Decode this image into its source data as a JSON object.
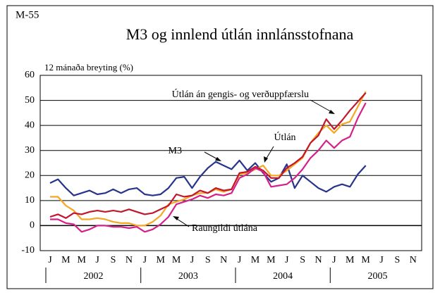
{
  "chart_data": {
    "type": "line",
    "figure_id": "M-55",
    "title": "M3 og innlend útlán innlánsstofnana",
    "y_label": "12 mánaða breyting (%)",
    "categories": [
      "J",
      null,
      "M",
      null,
      "M",
      null,
      "J",
      null,
      "S",
      null,
      "N",
      null,
      "J",
      null,
      "M",
      null,
      "M",
      null,
      "J",
      null,
      "S",
      null,
      "N",
      null,
      "J",
      null,
      "M",
      null,
      "M",
      null,
      "J",
      null,
      "S",
      null,
      "N",
      null,
      "J",
      null,
      "M",
      null,
      "M",
      null,
      "J",
      null,
      "S",
      null,
      "N",
      null
    ],
    "years": [
      "2002",
      "2003",
      "2004",
      "2005"
    ],
    "ylim": [
      -10,
      60
    ],
    "yticks": [
      -10,
      0,
      10,
      20,
      30,
      40,
      50,
      60
    ],
    "grid": true,
    "series": [
      {
        "name": "M3",
        "color": "#27348b",
        "values": [
          17,
          18.5,
          15,
          12,
          13,
          14,
          12.5,
          13,
          14.5,
          13,
          14.5,
          15,
          12.5,
          12,
          12.5,
          15,
          19,
          19.5,
          15,
          19.5,
          23,
          25.5,
          24,
          22.5,
          26,
          22,
          25,
          21,
          17.5,
          19,
          24.5,
          15,
          20,
          17.5,
          15,
          13.5,
          15.5,
          16.5,
          15.5,
          20.5,
          24,
          null,
          null,
          null,
          null,
          null,
          null,
          null
        ]
      },
      {
        "name": "Útlán án gengis- og verðuppfærslu",
        "color": "#f5a623",
        "values": [
          11.5,
          11.5,
          8,
          6,
          2.5,
          2.5,
          3,
          2.5,
          1.5,
          1,
          1,
          0,
          0,
          1.5,
          4,
          8.5,
          9.5,
          10.5,
          12,
          13,
          13,
          14.5,
          13.5,
          14.5,
          20.5,
          21,
          22.5,
          24,
          20,
          20,
          22,
          24.5,
          27,
          33,
          37,
          40,
          37,
          40.5,
          41.5,
          47.5,
          53.5,
          null,
          null,
          null,
          null,
          null,
          null,
          null
        ]
      },
      {
        "name": "Útlán",
        "color": "#c0172c",
        "values": [
          3.5,
          4.5,
          3,
          5,
          4.5,
          5.5,
          6,
          5.5,
          6,
          5.5,
          6.5,
          5.5,
          4.5,
          5,
          6.5,
          8,
          12.5,
          11.5,
          12,
          14,
          13,
          15,
          14,
          14.5,
          21,
          21.5,
          23.5,
          22,
          19,
          19,
          23,
          25,
          27.5,
          33,
          36,
          42.5,
          38.5,
          42,
          46,
          49.5,
          53,
          null,
          null,
          null,
          null,
          null,
          null,
          null
        ]
      },
      {
        "name": "Raungildi útlána",
        "color": "#d4208a",
        "values": [
          2.5,
          2.5,
          1,
          0.5,
          -2.5,
          -1.5,
          0,
          0,
          -0.5,
          -0.5,
          -1,
          -0.5,
          -2.5,
          -1.5,
          0.5,
          3.5,
          8.5,
          9.5,
          10.5,
          12,
          11,
          12.5,
          12,
          13,
          19,
          20.5,
          23,
          21.5,
          15.5,
          16,
          16.5,
          19,
          22.5,
          27,
          30,
          34,
          31,
          34,
          35.5,
          43,
          49,
          null,
          null,
          null,
          null,
          null,
          null,
          null
        ]
      }
    ]
  }
}
